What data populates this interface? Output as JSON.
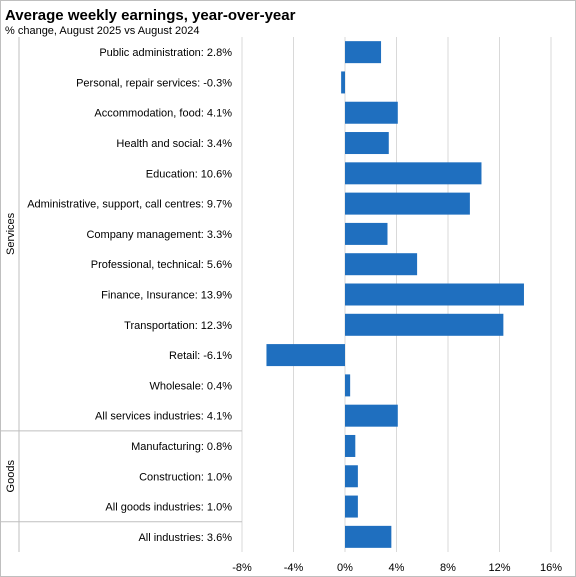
{
  "chart_data": {
    "type": "bar",
    "orientation": "horizontal",
    "title": "Average weekly earnings, year-over-year",
    "subtitle": "% change, August 2025 vs August 2024",
    "categories": [
      "Public administration:  2.8%",
      "Personal, repair services:  -0.3%",
      "Accommodation, food:  4.1%",
      "Health and social:  3.4%",
      "Education:  10.6%",
      "Administrative, support, call centres:  9.7%",
      "Company management:  3.3%",
      "Professional, technical:  5.6%",
      "Finance, Insurance:  13.9%",
      "Transportation:  12.3%",
      "Retail:  -6.1%",
      "Wholesale:  0.4%",
      "All services industries:  4.1%",
      "Manufacturing:  0.8%",
      "Construction:  1.0%",
      "All goods industries:  1.0%",
      "All industries:  3.6%"
    ],
    "values": [
      2.8,
      -0.3,
      4.1,
      3.4,
      10.6,
      9.7,
      3.3,
      5.6,
      13.9,
      12.3,
      -6.1,
      0.4,
      4.1,
      0.8,
      1.0,
      1.0,
      3.6
    ],
    "groups": [
      {
        "label": "Services",
        "start": 0,
        "end": 12
      },
      {
        "label": "Goods",
        "start": 13,
        "end": 15
      },
      {
        "label": "",
        "start": 16,
        "end": 16
      }
    ],
    "xticks": [
      -8,
      -4,
      0,
      4,
      8,
      12,
      16
    ],
    "xtick_labels": [
      "-8%",
      "-4%",
      "0%",
      "4%",
      "8%",
      "12%",
      "16%"
    ],
    "xlim": [
      -8,
      16
    ],
    "grid": true,
    "bar_color": "#1f6fbf",
    "grid_color": "#d9d9d9"
  }
}
